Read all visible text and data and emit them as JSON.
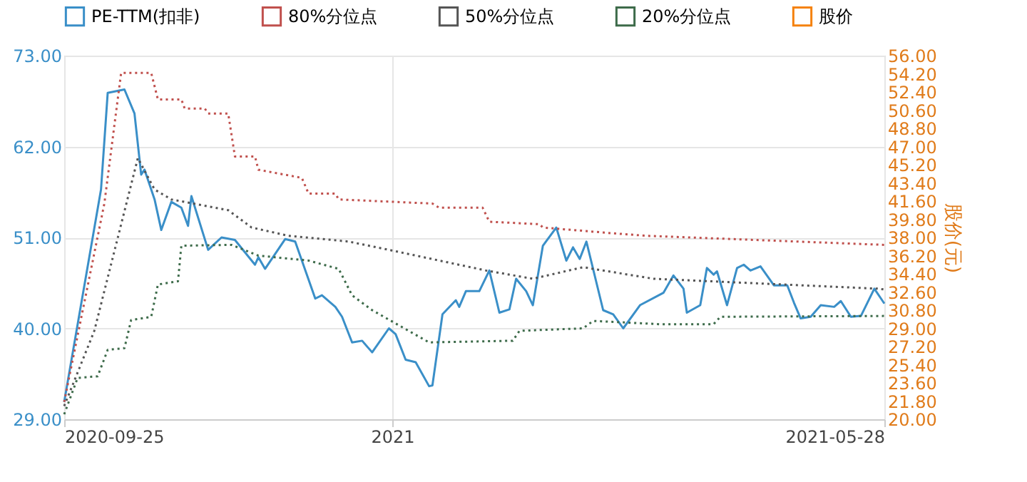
{
  "chart_data": {
    "type": "line",
    "y2label": "股价(元)",
    "grid": true,
    "legend": "top",
    "marker": "none",
    "xlim": [
      "2020-09-25",
      "2021-05-28"
    ],
    "xticks": [
      {
        "value": "2020-09-25",
        "label": "2020-09-25"
      },
      {
        "value": "2021-01-01",
        "label": "2021"
      },
      {
        "value": "2021-05-28",
        "label": "2021-05-28"
      }
    ],
    "ylim": [
      29,
      73
    ],
    "yticks": [
      {
        "value": 29,
        "label": "29.00"
      },
      {
        "value": 40,
        "label": "40.00"
      },
      {
        "value": 51,
        "label": "51.00"
      },
      {
        "value": 62,
        "label": "62.00"
      },
      {
        "value": 73,
        "label": "73.00"
      }
    ],
    "y2lim": [
      20,
      56
    ],
    "y2ticks": [
      {
        "value": 20,
        "label": "20.00"
      },
      {
        "value": 21.8,
        "label": "21.80"
      },
      {
        "value": 23.6,
        "label": "23.60"
      },
      {
        "value": 25.4,
        "label": "25.40"
      },
      {
        "value": 27.2,
        "label": "27.20"
      },
      {
        "value": 29,
        "label": "29.00"
      },
      {
        "value": 30.8,
        "label": "30.80"
      },
      {
        "value": 32.6,
        "label": "32.60"
      },
      {
        "value": 34.4,
        "label": "34.40"
      },
      {
        "value": 36.2,
        "label": "36.20"
      },
      {
        "value": 38,
        "label": "38.00"
      },
      {
        "value": 39.8,
        "label": "39.80"
      },
      {
        "value": 41.6,
        "label": "41.60"
      },
      {
        "value": 43.4,
        "label": "43.40"
      },
      {
        "value": 45.2,
        "label": "45.20"
      },
      {
        "value": 47,
        "label": "47.00"
      },
      {
        "value": 48.8,
        "label": "48.80"
      },
      {
        "value": 50.6,
        "label": "50.60"
      },
      {
        "value": 52.4,
        "label": "52.40"
      },
      {
        "value": 54.2,
        "label": "54.20"
      },
      {
        "value": 56,
        "label": "56.00"
      }
    ],
    "series": [
      {
        "name": "PE-TTM(扣非)",
        "color": "#3a8fc8",
        "type": "line",
        "line_style": "solid",
        "x": [
          "2020-09-25",
          "2020-10-06",
          "2020-10-08",
          "2020-10-13",
          "2020-10-16",
          "2020-10-18",
          "2020-10-19",
          "2020-10-22",
          "2020-10-24",
          "2020-10-27",
          "2020-10-30",
          "2020-11-01",
          "2020-11-02",
          "2020-11-07",
          "2020-11-11",
          "2020-11-15",
          "2020-11-21",
          "2020-11-22",
          "2020-11-24",
          "2020-11-30",
          "2020-12-03",
          "2020-12-09",
          "2020-12-11",
          "2020-12-15",
          "2020-12-17",
          "2020-12-20",
          "2020-12-23",
          "2020-12-26",
          "2020-12-31",
          "2021-01-02",
          "2021-01-05",
          "2021-01-08",
          "2021-01-12",
          "2021-01-13",
          "2021-01-16",
          "2021-01-20",
          "2021-01-21",
          "2021-01-23",
          "2021-01-27",
          "2021-01-30",
          "2021-02-02",
          "2021-02-05",
          "2021-02-07",
          "2021-02-10",
          "2021-02-12",
          "2021-02-15",
          "2021-02-19",
          "2021-02-22",
          "2021-02-24",
          "2021-02-26",
          "2021-02-28",
          "2021-03-05",
          "2021-03-08",
          "2021-03-11",
          "2021-03-16",
          "2021-03-23",
          "2021-03-26",
          "2021-03-29",
          "2021-03-30",
          "2021-04-03",
          "2021-04-05",
          "2021-04-07",
          "2021-04-08",
          "2021-04-11",
          "2021-04-14",
          "2021-04-16",
          "2021-04-18",
          "2021-04-21",
          "2021-04-25",
          "2021-04-29",
          "2021-05-01",
          "2021-05-03",
          "2021-05-06",
          "2021-05-09",
          "2021-05-13",
          "2021-05-15",
          "2021-05-18",
          "2021-05-21",
          "2021-05-25",
          "2021-05-27",
          "2021-05-28"
        ],
        "values": [
          31.1,
          56.8,
          68.5,
          68.9,
          66.0,
          58.6,
          59.2,
          55.6,
          51.9,
          55.3,
          54.6,
          52.4,
          56.0,
          49.5,
          51.0,
          50.7,
          47.7,
          48.6,
          47.2,
          50.8,
          50.5,
          43.6,
          44.0,
          42.6,
          41.4,
          38.3,
          38.5,
          37.1,
          40.0,
          39.3,
          36.2,
          35.9,
          33.0,
          33.1,
          41.7,
          43.4,
          42.6,
          44.5,
          44.5,
          47.0,
          41.9,
          42.3,
          46.0,
          44.5,
          42.8,
          50.0,
          52.2,
          48.2,
          49.8,
          48.4,
          50.5,
          42.2,
          41.7,
          40.0,
          42.8,
          44.3,
          46.4,
          44.8,
          41.9,
          42.8,
          47.3,
          46.5,
          46.9,
          42.8,
          47.3,
          47.7,
          47.0,
          47.5,
          45.2,
          45.2,
          43.1,
          41.2,
          41.4,
          42.8,
          42.6,
          43.3,
          41.4,
          41.5,
          44.8,
          43.6,
          43.0
        ]
      },
      {
        "name": "80%分位点",
        "color": "#c0504d",
        "type": "line",
        "line_style": "dotted",
        "x": [
          "2020-09-25",
          "2020-10-07",
          "2020-10-12",
          "2020-10-21",
          "2020-10-23",
          "2020-10-30",
          "2020-10-31",
          "2020-11-06",
          "2020-11-07",
          "2020-11-13",
          "2020-11-15",
          "2020-11-21",
          "2020-11-22",
          "2020-12-05",
          "2020-12-07",
          "2020-12-15",
          "2020-12-16",
          "2021-01-13",
          "2021-01-15",
          "2021-01-28",
          "2021-01-30",
          "2021-02-14",
          "2021-02-15",
          "2021-03-08",
          "2021-03-18",
          "2021-05-28"
        ],
        "values": [
          31.1,
          55.1,
          70.9,
          70.9,
          67.7,
          67.7,
          66.6,
          66.6,
          66.0,
          66.0,
          60.8,
          60.8,
          59.2,
          58.2,
          56.3,
          56.3,
          55.6,
          55.1,
          54.6,
          54.6,
          52.9,
          52.6,
          52.2,
          51.5,
          51.2,
          50.1
        ]
      },
      {
        "name": "50%分位点",
        "color": "#555555",
        "type": "line",
        "line_style": "dotted",
        "x": [
          "2020-09-25",
          "2020-10-04",
          "2020-10-17",
          "2020-10-22",
          "2020-10-27",
          "2020-11-13",
          "2020-11-20",
          "2020-12-01",
          "2020-12-19",
          "2020-12-31",
          "2021-01-29",
          "2021-02-12",
          "2021-02-27",
          "2021-03-20",
          "2021-05-26",
          "2021-05-28"
        ],
        "values": [
          30.6,
          39.7,
          60.6,
          56.8,
          55.6,
          54.3,
          52.2,
          51.2,
          50.5,
          49.5,
          47.0,
          46.0,
          47.4,
          46.0,
          44.8,
          44.7
        ]
      },
      {
        "name": "20%分位点",
        "color": "#3d6b4a",
        "type": "line",
        "line_style": "dotted",
        "x": [
          "2020-09-25",
          "2020-09-29",
          "2020-10-05",
          "2020-10-08",
          "2020-10-13",
          "2020-10-15",
          "2020-10-21",
          "2020-10-23",
          "2020-10-29",
          "2020-10-30",
          "2020-11-14",
          "2020-11-22",
          "2020-12-07",
          "2020-12-16",
          "2020-12-20",
          "2020-12-26",
          "2021-01-12",
          "2021-02-06",
          "2021-02-08",
          "2021-02-27",
          "2021-03-02",
          "2021-03-22",
          "2021-04-07",
          "2021-04-09",
          "2021-05-28"
        ],
        "values": [
          29.6,
          34.0,
          34.2,
          37.4,
          37.6,
          41.0,
          41.4,
          45.3,
          45.7,
          50.0,
          50.1,
          48.8,
          48.2,
          47.2,
          44.0,
          42.2,
          38.3,
          38.5,
          39.7,
          40.0,
          40.9,
          40.5,
          40.5,
          41.4,
          41.5
        ]
      },
      {
        "name": "股价",
        "color": "#f5820f",
        "type": "line",
        "line_style": "solid",
        "axis": "y2"
      }
    ]
  }
}
